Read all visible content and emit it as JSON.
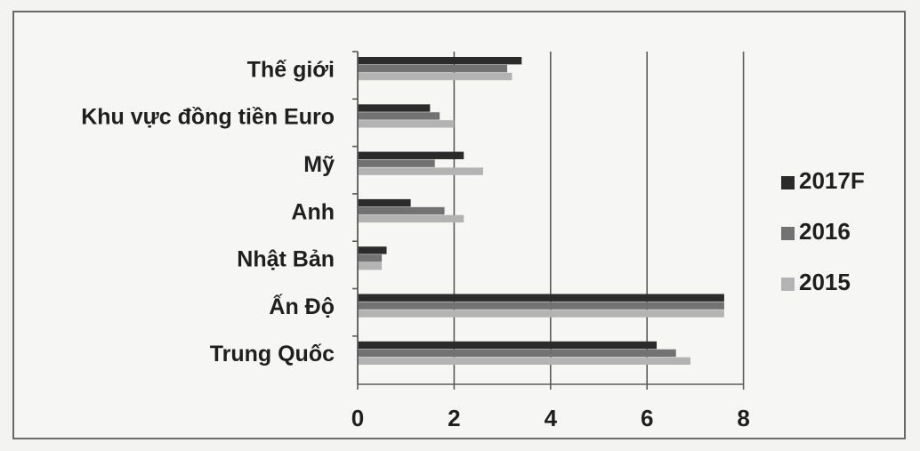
{
  "chart_data": {
    "type": "bar",
    "orientation": "horizontal",
    "title": "",
    "xlabel": "",
    "ylabel": "",
    "categories": [
      "Thế giới",
      "Khu vực đồng tiền Euro",
      "Mỹ",
      "Anh",
      "Nhật Bản",
      "Ấn Độ",
      "Trung Quốc"
    ],
    "series": [
      {
        "name": "2017F",
        "color": "#2b2b2b",
        "values": [
          3.4,
          1.5,
          2.2,
          1.1,
          0.6,
          7.6,
          6.2
        ]
      },
      {
        "name": "2016",
        "color": "#727272",
        "values": [
          3.1,
          1.7,
          1.6,
          1.8,
          0.5,
          7.6,
          6.6
        ]
      },
      {
        "name": "2015",
        "color": "#b3b3b3",
        "values": [
          3.2,
          2.0,
          2.6,
          2.2,
          0.5,
          7.6,
          6.9
        ]
      }
    ],
    "xlim": [
      0,
      8
    ],
    "xticks": [
      "0",
      "2",
      "4",
      "6",
      "8"
    ],
    "grid": "vertical",
    "legend_position": "right"
  }
}
